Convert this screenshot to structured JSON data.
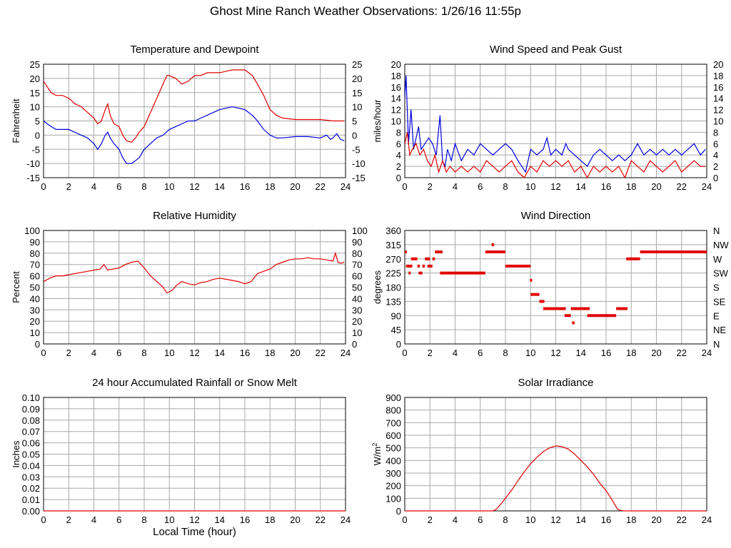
{
  "page": {
    "title": "Ghost Mine Ranch Weather Observations: 1/26/16 11:55p"
  },
  "colors": {
    "red": "#e00000",
    "blue": "#0000dd",
    "grid": "#a8a8a8"
  },
  "chart_data": [
    {
      "id": "temp",
      "type": "line",
      "title": "Temperature and Dewpoint",
      "xlabel": "",
      "ylabel": "Fahrenheit",
      "xlim": [
        0,
        24
      ],
      "ylim": [
        -15,
        25
      ],
      "xticks": [
        0,
        2,
        4,
        6,
        8,
        10,
        12,
        14,
        16,
        18,
        20,
        22,
        24
      ],
      "yticks": [
        -15,
        -10,
        -5,
        0,
        5,
        10,
        15,
        20,
        25
      ],
      "yticks_right": [
        -15,
        -10,
        -5,
        0,
        5,
        10,
        15,
        20,
        25
      ],
      "grid": true,
      "series": [
        {
          "color": "red",
          "x": [
            0,
            0.3,
            0.6,
            1,
            1.5,
            2,
            2.5,
            3,
            3.5,
            4,
            4.3,
            4.6,
            4.9,
            5.1,
            5.3,
            5.6,
            6,
            6.3,
            6.6,
            7,
            7.3,
            7.6,
            8,
            8.5,
            9,
            9.5,
            9.8,
            10,
            10.5,
            11,
            11.5,
            12,
            12.5,
            13,
            13.5,
            14,
            14.5,
            15,
            15.5,
            16,
            16.3,
            16.6,
            17,
            17.5,
            18,
            18.5,
            19,
            20,
            21,
            22,
            23,
            23.9
          ],
          "y": [
            19,
            17,
            15,
            14,
            14,
            13,
            11,
            10,
            8,
            6,
            4,
            5,
            9,
            11,
            7,
            4,
            3,
            0,
            -2,
            -2.5,
            -1,
            1,
            3,
            8,
            13,
            18,
            21,
            21,
            20,
            18,
            19,
            21,
            21,
            22,
            22,
            22,
            22.5,
            23,
            23,
            23,
            22,
            21,
            18,
            14,
            9,
            7,
            6,
            5.5,
            5.5,
            5.5,
            5,
            5
          ]
        },
        {
          "color": "blue",
          "x": [
            0,
            0.3,
            0.6,
            1,
            1.5,
            2,
            2.5,
            3,
            3.5,
            4,
            4.3,
            4.6,
            4.9,
            5.1,
            5.3,
            5.6,
            6,
            6.3,
            6.6,
            7,
            7.3,
            7.6,
            8,
            8.5,
            9,
            9.5,
            10,
            10.5,
            11,
            11.5,
            12,
            12.5,
            13,
            13.5,
            14,
            14.5,
            15,
            15.5,
            16,
            16.3,
            16.6,
            17,
            17.5,
            18,
            18.5,
            19,
            20,
            21,
            22,
            22.5,
            22.8,
            23,
            23.3,
            23.6,
            23.9
          ],
          "y": [
            5,
            4,
            3,
            2,
            2,
            2,
            1,
            0,
            -1,
            -3,
            -5,
            -3,
            0,
            1,
            -1,
            -3,
            -5,
            -8,
            -10,
            -10,
            -9,
            -8,
            -5,
            -3,
            -1,
            0,
            2,
            3,
            4,
            5,
            5,
            6,
            7,
            8,
            9,
            9.5,
            10,
            9.5,
            9,
            8,
            7,
            5,
            2,
            0,
            -1,
            -1,
            -0.5,
            -0.5,
            -1,
            0,
            -1.5,
            -1,
            0.5,
            -1.5,
            -2
          ]
        }
      ]
    },
    {
      "id": "wind",
      "type": "line",
      "title": "Wind Speed and Peak Gust",
      "xlabel": "",
      "ylabel": "miles/hour",
      "xlim": [
        0,
        24
      ],
      "ylim": [
        0,
        20
      ],
      "xticks": [
        0,
        2,
        4,
        6,
        8,
        10,
        12,
        14,
        16,
        18,
        20,
        22,
        24
      ],
      "yticks": [
        0,
        2,
        4,
        6,
        8,
        10,
        12,
        14,
        16,
        18,
        20
      ],
      "yticks_right": [
        0,
        2,
        4,
        6,
        8,
        10,
        12,
        14,
        16,
        18,
        20
      ],
      "grid": true,
      "series": [
        {
          "color": "blue",
          "x": [
            0,
            0.1,
            0.2,
            0.3,
            0.5,
            0.7,
            0.9,
            1.1,
            1.3,
            1.6,
            1.9,
            2.2,
            2.5,
            2.8,
            3,
            3.2,
            3.4,
            3.7,
            4,
            4.5,
            5,
            5.5,
            6,
            6.5,
            7,
            7.5,
            8,
            8.5,
            9,
            9.3,
            9.6,
            10,
            10.5,
            11,
            11.3,
            11.6,
            12,
            12.5,
            12.8,
            13,
            13.5,
            14,
            14.5,
            15,
            15.5,
            16,
            16.5,
            17,
            17.5,
            18,
            18.5,
            19,
            19.5,
            20,
            20.5,
            21,
            21.5,
            22,
            22.5,
            23,
            23.5,
            23.9
          ],
          "y": [
            14,
            18,
            12,
            6,
            12,
            5,
            7,
            9,
            5,
            6,
            7,
            6,
            4,
            11,
            3,
            2,
            5,
            3,
            6,
            3,
            5,
            4,
            6,
            5,
            4,
            5,
            6,
            5,
            3,
            2,
            1,
            5,
            4,
            5,
            7,
            4,
            5,
            4,
            6,
            5,
            4,
            3,
            2,
            4,
            5,
            4,
            3,
            4,
            3,
            4,
            6,
            4,
            5,
            4,
            5,
            4,
            5,
            4,
            5,
            6,
            4,
            5
          ]
        },
        {
          "color": "red",
          "x": [
            0,
            0.2,
            0.4,
            0.6,
            0.9,
            1.2,
            1.5,
            1.8,
            2.1,
            2.4,
            2.7,
            3,
            3.3,
            3.6,
            4,
            4.5,
            5,
            5.5,
            6,
            6.5,
            7,
            7.5,
            8,
            8.5,
            9,
            9.5,
            10,
            10.5,
            11,
            11.5,
            12,
            12.5,
            13,
            13.5,
            14,
            14.5,
            15,
            15.5,
            16,
            16.5,
            17,
            17.5,
            18,
            18.5,
            19,
            19.5,
            20,
            20.5,
            21,
            21.5,
            22,
            22.5,
            23,
            23.5,
            23.9
          ],
          "y": [
            6,
            8,
            4,
            5,
            6,
            4,
            5,
            3,
            2,
            4,
            1,
            3,
            1,
            2,
            1,
            2,
            1,
            2,
            1,
            3,
            2,
            1,
            2,
            3,
            1,
            0,
            2,
            1,
            3,
            2,
            3,
            2,
            3,
            1,
            2,
            0,
            2,
            1,
            2,
            1,
            2,
            0,
            3,
            2,
            1,
            3,
            2,
            1,
            2,
            3,
            1,
            2,
            3,
            2,
            2
          ]
        }
      ]
    },
    {
      "id": "rh",
      "type": "line",
      "title": "Relative Humidity",
      "xlabel": "",
      "ylabel": "Percent",
      "xlim": [
        0,
        24
      ],
      "ylim": [
        0,
        100
      ],
      "xticks": [
        0,
        2,
        4,
        6,
        8,
        10,
        12,
        14,
        16,
        18,
        20,
        22,
        24
      ],
      "yticks": [
        0,
        10,
        20,
        30,
        40,
        50,
        60,
        70,
        80,
        90,
        100
      ],
      "yticks_right": [
        0,
        10,
        20,
        30,
        40,
        50,
        60,
        70,
        80,
        90,
        100
      ],
      "grid": true,
      "series": [
        {
          "color": "red",
          "x": [
            0,
            0.5,
            1,
            1.5,
            2,
            2.5,
            3,
            3.5,
            4,
            4.5,
            4.8,
            5.1,
            5.5,
            6,
            6.5,
            7,
            7.5,
            8,
            8.5,
            9,
            9.5,
            9.8,
            10.2,
            10.6,
            11,
            11.5,
            12,
            12.5,
            13,
            13.5,
            14,
            14.5,
            15,
            15.5,
            16,
            16.5,
            17,
            17.5,
            18,
            18.5,
            19,
            19.5,
            20,
            20.5,
            21,
            21.5,
            22,
            22.5,
            23,
            23.2,
            23.4,
            23.6,
            23.9
          ],
          "y": [
            55,
            58,
            60,
            60,
            61,
            62,
            63,
            64,
            65,
            66,
            70,
            65,
            66,
            67,
            70,
            72,
            73,
            67,
            60,
            55,
            50,
            45,
            47,
            52,
            55,
            53,
            52,
            54,
            55,
            57,
            58,
            57,
            56,
            55,
            53,
            55,
            62,
            64,
            66,
            70,
            72,
            74,
            75,
            75,
            76,
            75,
            75,
            74,
            73,
            80,
            72,
            71,
            72
          ]
        }
      ]
    },
    {
      "id": "dir",
      "type": "scatter",
      "title": "Wind Direction",
      "xlabel": "",
      "ylabel": "degrees",
      "xlim": [
        0,
        24
      ],
      "ylim": [
        0,
        360
      ],
      "xticks": [
        0,
        2,
        4,
        6,
        8,
        10,
        12,
        14,
        16,
        18,
        20,
        22,
        24
      ],
      "yticks": [
        0,
        45,
        90,
        135,
        180,
        225,
        270,
        315,
        360
      ],
      "yticks_right": [
        "N",
        "NE",
        "E",
        "SE",
        "S",
        "SW",
        "W",
        "NW",
        "N"
      ],
      "grid": true,
      "segments": [
        {
          "x0": 0,
          "x1": 0.1,
          "y": 292
        },
        {
          "x0": 0.1,
          "x1": 0.6,
          "y": 247
        },
        {
          "x0": 0.3,
          "x1": 0.4,
          "y": 225
        },
        {
          "x0": 0.5,
          "x1": 1.0,
          "y": 270
        },
        {
          "x0": 1.0,
          "x1": 1.2,
          "y": 247
        },
        {
          "x0": 1.1,
          "x1": 1.4,
          "y": 225
        },
        {
          "x0": 1.4,
          "x1": 1.6,
          "y": 247
        },
        {
          "x0": 1.6,
          "x1": 2.0,
          "y": 270
        },
        {
          "x0": 1.8,
          "x1": 2.2,
          "y": 247
        },
        {
          "x0": 2.2,
          "x1": 2.4,
          "y": 270
        },
        {
          "x0": 2.4,
          "x1": 3.0,
          "y": 292
        },
        {
          "x0": 2.8,
          "x1": 6.4,
          "y": 225
        },
        {
          "x0": 6.4,
          "x1": 8.0,
          "y": 292
        },
        {
          "x0": 6.9,
          "x1": 7.1,
          "y": 315
        },
        {
          "x0": 8.0,
          "x1": 10.0,
          "y": 247
        },
        {
          "x0": 9.95,
          "x1": 10.05,
          "y": 202
        },
        {
          "x0": 10.0,
          "x1": 10.7,
          "y": 157
        },
        {
          "x0": 10.7,
          "x1": 11.1,
          "y": 135
        },
        {
          "x0": 11.0,
          "x1": 12.8,
          "y": 112
        },
        {
          "x0": 12.7,
          "x1": 13.2,
          "y": 90
        },
        {
          "x0": 13.2,
          "x1": 13.4,
          "y": 112
        },
        {
          "x0": 13.3,
          "x1": 13.5,
          "y": 67
        },
        {
          "x0": 13.4,
          "x1": 14.7,
          "y": 112
        },
        {
          "x0": 14.5,
          "x1": 16.8,
          "y": 90
        },
        {
          "x0": 16.8,
          "x1": 17.7,
          "y": 112
        },
        {
          "x0": 17.6,
          "x1": 18.7,
          "y": 270
        },
        {
          "x0": 18.7,
          "x1": 24.0,
          "y": 292
        }
      ]
    },
    {
      "id": "rain",
      "type": "line",
      "title": "24 hour Accumulated Rainfall or Snow Melt",
      "xlabel": "Local Time (hour)",
      "ylabel": "Inches",
      "xlim": [
        0,
        24
      ],
      "ylim": [
        0,
        0.1
      ],
      "xticks": [
        0,
        2,
        4,
        6,
        8,
        10,
        12,
        14,
        16,
        18,
        20,
        22,
        24
      ],
      "yticks": [
        "0.00",
        "0.01",
        "0.02",
        "0.03",
        "0.04",
        "0.05",
        "0.06",
        "0.07",
        "0.08",
        "0.09",
        "0.10"
      ],
      "grid": true,
      "series": [
        {
          "color": "red",
          "x": [
            0,
            24
          ],
          "y": [
            0,
            0
          ]
        }
      ]
    },
    {
      "id": "solar",
      "type": "line",
      "title": "Solar Irradiance",
      "xlabel": "",
      "ylabel": "W/m",
      "ylabel_sup": "2",
      "xlim": [
        0,
        24
      ],
      "ylim": [
        0,
        900
      ],
      "xticks": [
        0,
        2,
        4,
        6,
        8,
        10,
        12,
        14,
        16,
        18,
        20,
        22,
        24
      ],
      "yticks": [
        0,
        100,
        200,
        300,
        400,
        500,
        600,
        700,
        800,
        900
      ],
      "grid": true,
      "series": [
        {
          "color": "red",
          "x": [
            0,
            7.0,
            7.3,
            7.6,
            8,
            8.5,
            9,
            9.5,
            10,
            10.5,
            11,
            11.5,
            12,
            12.5,
            13,
            13.5,
            14,
            14.5,
            15,
            15.5,
            16,
            16.4,
            16.7,
            16.9,
            17.1,
            17.4,
            18,
            24
          ],
          "y": [
            0,
            0,
            15,
            50,
            100,
            165,
            240,
            310,
            375,
            425,
            470,
            500,
            515,
            510,
            490,
            450,
            400,
            350,
            290,
            220,
            160,
            100,
            50,
            15,
            5,
            0,
            0,
            0
          ]
        }
      ]
    }
  ]
}
